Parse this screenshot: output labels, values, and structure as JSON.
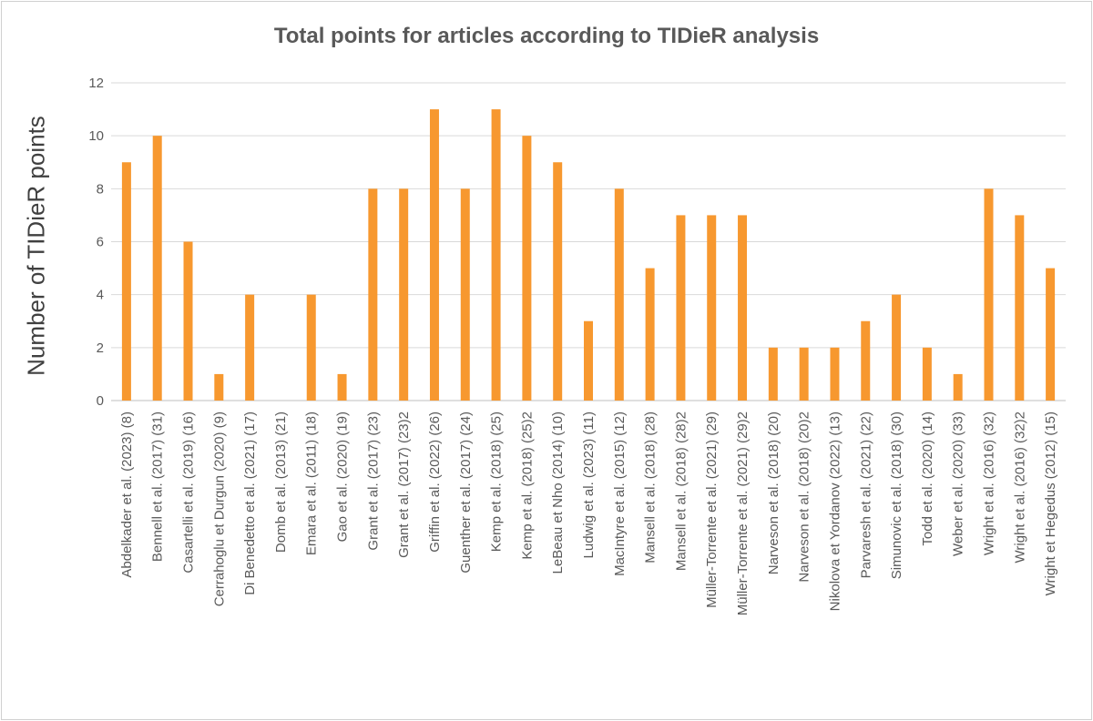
{
  "chart_data": {
    "type": "bar",
    "title": "Total points for articles according to TIDieR analysis",
    "xlabel": "",
    "ylabel": "Number of TIDieR points",
    "ylim": [
      0,
      12
    ],
    "yticks": [
      0,
      2,
      4,
      6,
      8,
      10,
      12
    ],
    "grid": true,
    "bar_color": "#F7982F",
    "categories": [
      "Abdelkader et al. (2023) (8)",
      "Bennell et al. (2017) (31)",
      "Casartelli et al. (2019) (16)",
      "Cerrahoglu et Durgun (2020) (9)",
      "Di Benedetto et al. (2021) (17)",
      "Domb et al. (2013) (21)",
      "Emara et al. (2011) (18)",
      "Gao et al. (2020) (19)",
      "Grant et al. (2017) (23)",
      "Grant et al. (2017) (23)2",
      "Griffin et al. (2022) (26)",
      "Guenther et al. (2017) (24)",
      "Kemp et al. (2018) (25)",
      "Kemp et al. (2018) (25)2",
      "LeBeau et Nho (2014) (10)",
      "Ludwig et al. (2023) (11)",
      "MacIntyre et al. (2015) (12)",
      "Mansell et al. (2018) (28)",
      "Mansell et al. (2018) (28)2",
      "Müller-Torrente et al. (2021) (29)",
      "Müller-Torrente et al. (2021) (29)2",
      "Narveson et al. (2018) (20)",
      "Narveson et al. (2018) (20)2",
      "Nikolova et Yordanov (2022) (13)",
      "Parvaresh et al. (2021) (22)",
      "Simunovic et al. (2018) (30)",
      "Todd et al. (2020) (14)",
      "Weber et al. (2020) (33)",
      "Wright et al. (2016) (32)",
      "Wright et al. (2016) (32)2",
      "Wright et Hegedus (2012) (15)"
    ],
    "values": [
      9,
      10,
      6,
      1,
      4,
      0,
      4,
      1,
      8,
      8,
      11,
      8,
      11,
      10,
      9,
      3,
      8,
      5,
      7,
      7,
      7,
      2,
      2,
      2,
      3,
      4,
      2,
      1,
      8,
      7,
      5
    ]
  }
}
